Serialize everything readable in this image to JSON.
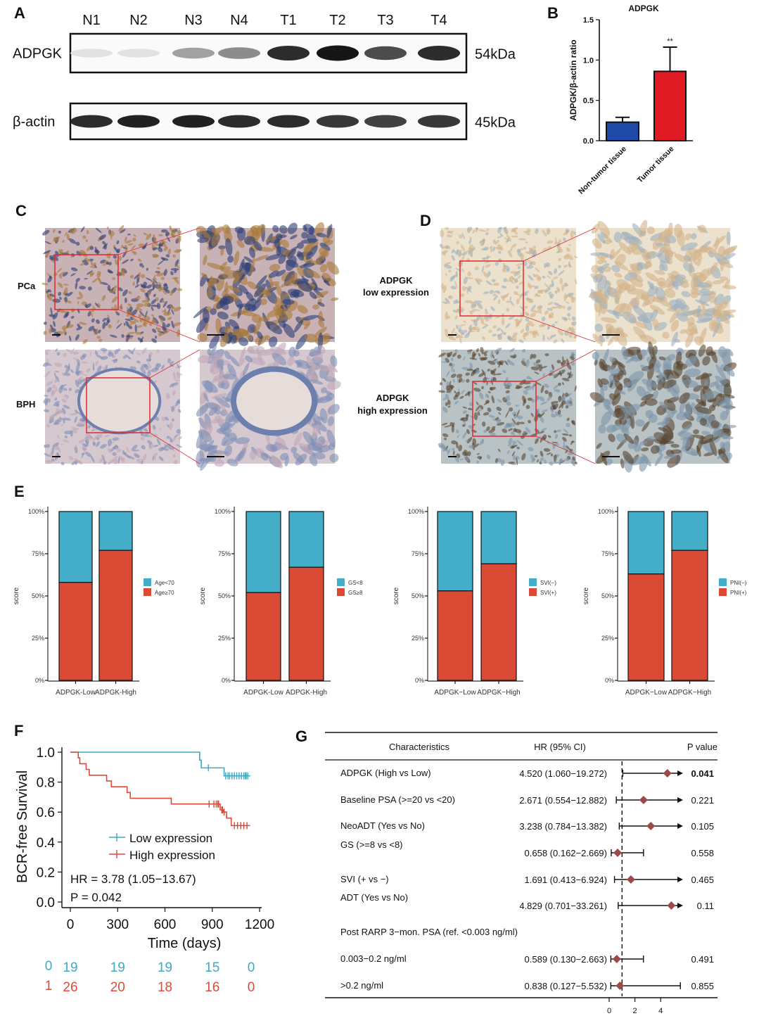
{
  "panel_labels": {
    "A": "A",
    "B": "B",
    "C": "C",
    "D": "D",
    "E": "E",
    "F": "F",
    "G": "G"
  },
  "blot": {
    "lanes": [
      "N1",
      "N2",
      "N3",
      "N4",
      "T1",
      "T2",
      "T3",
      "T4"
    ],
    "rows": [
      {
        "label": "ADPGK",
        "size": "54kDa",
        "band_intensity": [
          0.05,
          0.05,
          0.35,
          0.45,
          0.9,
          1.0,
          0.75,
          0.9
        ]
      },
      {
        "label": "β-actin",
        "size": "45kDa",
        "band_intensity": [
          0.9,
          0.95,
          0.95,
          0.9,
          0.9,
          0.85,
          0.8,
          0.85
        ]
      }
    ]
  },
  "histology": {
    "C": {
      "rows": [
        {
          "label": "PCa"
        },
        {
          "label": "BPH"
        }
      ]
    },
    "D": {
      "rows": [
        {
          "line1": "ADPGK",
          "line2": "low expression"
        },
        {
          "line1": "ADPGK",
          "line2": "high expression"
        }
      ]
    }
  },
  "colors": {
    "blue_bar": "#1f4aa8",
    "red_bar": "#e01b24",
    "stack_top": "#44adc7",
    "stack_bottom": "#db4a35",
    "km_low": "#3fa9c0",
    "km_high": "#d94c3c",
    "forest_marker": "#9c4a48"
  },
  "chart_data": [
    {
      "panel": "B",
      "type": "bar",
      "title": "ADPGK",
      "ylabel": "ADPGK/β-actin ratio",
      "categories": [
        "Non-tumor tissue",
        "Tumor tissue"
      ],
      "values": [
        0.23,
        0.86
      ],
      "error": [
        0.06,
        0.3
      ],
      "annotations": [
        "",
        "**"
      ],
      "ylim": [
        0,
        1.5
      ],
      "yticks": [
        "0.0",
        "0.5",
        "1.0",
        "1.5"
      ]
    },
    {
      "panel": "E",
      "type": "bar",
      "stacked": true,
      "ylabel": "score",
      "categories": [
        "ADPGK-Low",
        "ADPGK-High"
      ],
      "yticks": [
        "0%",
        "25%",
        "50%",
        "75%",
        "100%"
      ],
      "series": [
        {
          "name": "Age<70",
          "values": [
            42,
            23
          ]
        },
        {
          "name": "Age≥70",
          "values": [
            58,
            77
          ]
        }
      ]
    },
    {
      "panel": "E",
      "type": "bar",
      "stacked": true,
      "ylabel": "score",
      "categories": [
        "ADPGK-Low",
        "ADPGK-High"
      ],
      "yticks": [
        "0%",
        "25%",
        "50%",
        "75%",
        "100%"
      ],
      "series": [
        {
          "name": "GS<8",
          "values": [
            48,
            33
          ]
        },
        {
          "name": "GS≥8",
          "values": [
            52,
            67
          ]
        }
      ]
    },
    {
      "panel": "E",
      "type": "bar",
      "stacked": true,
      "ylabel": "score",
      "categories": [
        "ADPGK−Low",
        "ADPGK−High"
      ],
      "yticks": [
        "0%",
        "25%",
        "50%",
        "75%",
        "100%"
      ],
      "series": [
        {
          "name": "SVI(−)",
          "values": [
            47,
            31
          ]
        },
        {
          "name": "SVI(+)",
          "values": [
            53,
            69
          ]
        }
      ]
    },
    {
      "panel": "E",
      "type": "bar",
      "stacked": true,
      "ylabel": "score",
      "categories": [
        "ADPGK−Low",
        "ADPGK−High"
      ],
      "yticks": [
        "0%",
        "25%",
        "50%",
        "75%",
        "100%"
      ],
      "series": [
        {
          "name": "PNI(−)",
          "values": [
            37,
            23
          ]
        },
        {
          "name": "PNI(+)",
          "values": [
            63,
            77
          ]
        }
      ]
    },
    {
      "panel": "F",
      "type": "line",
      "subtype": "kaplan-meier",
      "xlabel": "Time (days)",
      "ylabel": "BCR-free Survival",
      "xlim": [
        0,
        1200
      ],
      "ylim": [
        0,
        1
      ],
      "xticks": [
        "0",
        "300",
        "600",
        "900",
        "1200"
      ],
      "yticks": [
        "0.0",
        "0.2",
        "0.4",
        "0.6",
        "0.8",
        "1.0"
      ],
      "series": [
        {
          "name": "Low expression",
          "steps": [
            [
              0,
              1.0
            ],
            [
              820,
              0.947
            ],
            [
              830,
              0.895
            ],
            [
              975,
              0.842
            ]
          ],
          "end": 1140,
          "censor": [
            875,
            985,
            1000,
            1010,
            1025,
            1040,
            1055,
            1070,
            1085,
            1100,
            1110,
            1115,
            1125
          ]
        },
        {
          "name": "High expression",
          "steps": [
            [
              0,
              1.0
            ],
            [
              50,
              0.962
            ],
            [
              60,
              0.923
            ],
            [
              100,
              0.885
            ],
            [
              120,
              0.846
            ],
            [
              230,
              0.808
            ],
            [
              260,
              0.769
            ],
            [
              360,
              0.731
            ],
            [
              380,
              0.692
            ],
            [
              640,
              0.654
            ],
            [
              950,
              0.615
            ],
            [
              970,
              0.6
            ],
            [
              990,
              0.56
            ],
            [
              1020,
              0.51
            ]
          ],
          "end": 1140,
          "censor": [
            880,
            910,
            925,
            935,
            940,
            960,
            965,
            975,
            1040,
            1060,
            1080,
            1100,
            1120
          ]
        }
      ],
      "annotations": [
        "HR = 3.78 (1.05−13.67)",
        "P = 0.042"
      ],
      "risk_table": {
        "groups": [
          {
            "label": "0",
            "counts": [
              "19",
              "19",
              "19",
              "15",
              "0"
            ]
          },
          {
            "label": "1",
            "counts": [
              "26",
              "20",
              "18",
              "16",
              "0"
            ]
          }
        ]
      }
    },
    {
      "panel": "G",
      "type": "forest",
      "headers": [
        "Characteristics",
        "HR (95% CI)",
        "P value"
      ],
      "reference_line": 1,
      "xticks": [
        "0",
        "2",
        "4"
      ],
      "rows": [
        {
          "label": "ADPGK (High vs Low)",
          "hr_text": "4.520 (1.060−19.272)",
          "hr": 4.52,
          "lo": 1.06,
          "hi": 19.272,
          "p": "0.041",
          "bold": true
        },
        {
          "label": "Baseline PSA (>=20 vs <20)",
          "hr_text": "2.671 (0.554−12.882)",
          "hr": 2.671,
          "lo": 0.554,
          "hi": 12.882,
          "p": "0.221"
        },
        {
          "label": "NeoADT (Yes vs No)",
          "hr_text": "3.238 (0.784−13.382)",
          "hr": 3.238,
          "lo": 0.784,
          "hi": 13.382,
          "p": "0.105"
        },
        {
          "label": "GS (>=8 vs <8)",
          "hr_text": "0.658 (0.162−2.669)",
          "hr": 0.658,
          "lo": 0.162,
          "hi": 2.669,
          "p": "0.558",
          "offset_label": true
        },
        {
          "label": "SVI (+ vs −)",
          "hr_text": "1.691 (0.413−6.924)",
          "hr": 1.691,
          "lo": 0.413,
          "hi": 6.924,
          "p": "0.465"
        },
        {
          "label": "ADT (Yes vs No)",
          "hr_text": "4.829 (0.701−33.261)",
          "hr": 4.829,
          "lo": 0.701,
          "hi": 33.261,
          "p": "0.11",
          "offset_label": true
        },
        {
          "label": "Post RARP 3−mon. PSA (ref. <0.003 ng/ml)",
          "header_only": true
        },
        {
          "label": "0.003−0.2 ng/ml",
          "hr_text": "0.589 (0.130−2.663)",
          "hr": 0.589,
          "lo": 0.13,
          "hi": 2.663,
          "p": "0.491"
        },
        {
          "label": ">0.2 ng/ml",
          "hr_text": "0.838 (0.127−5.532)",
          "hr": 0.838,
          "lo": 0.127,
          "hi": 5.532,
          "p": "0.855"
        }
      ]
    }
  ]
}
